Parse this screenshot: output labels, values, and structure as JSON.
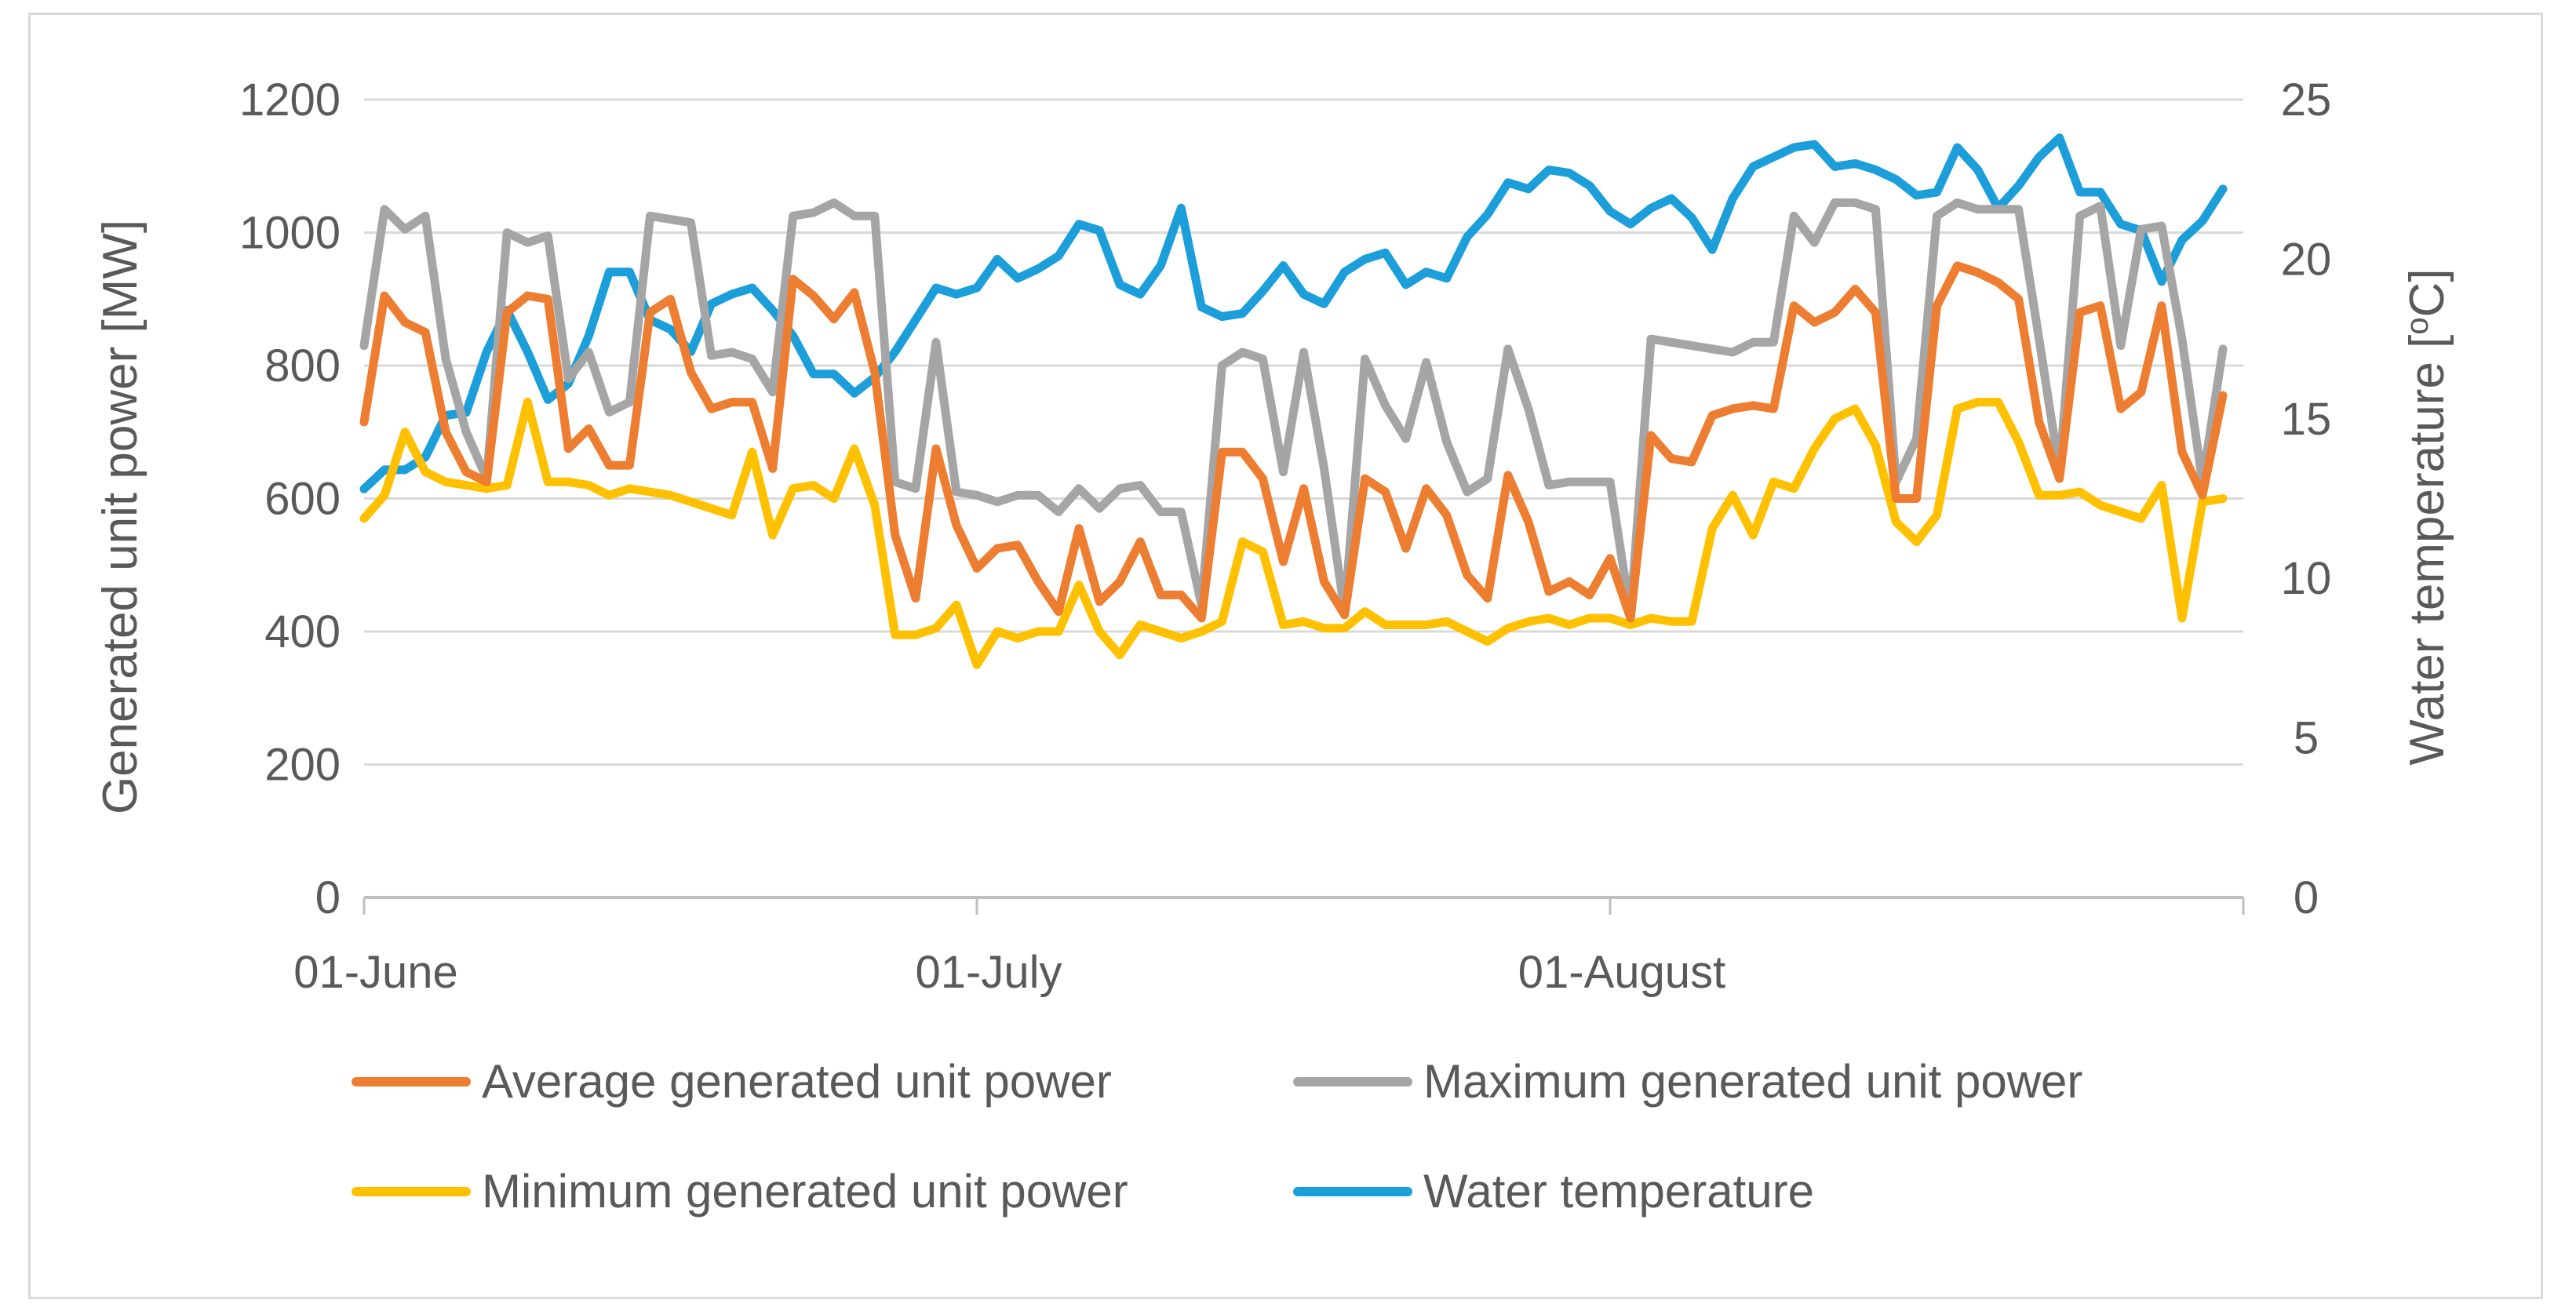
{
  "chart_data": {
    "type": "line",
    "title": "",
    "xlabel": "",
    "ylabel": "Generated unit power [MW]",
    "y2label_parts": {
      "pre": "Water temperature [",
      "sup": "o",
      "post": "C]"
    },
    "ylim": [
      0,
      1200
    ],
    "y2lim": [
      0,
      25
    ],
    "yticks": [
      0,
      200,
      400,
      600,
      800,
      1000,
      1200
    ],
    "y2ticks": [
      0,
      5,
      10,
      15,
      20,
      25
    ],
    "x_range": [
      0,
      92
    ],
    "x_ticks": [
      {
        "label": "01-June",
        "day": 0
      },
      {
        "label": "01-July",
        "day": 30
      },
      {
        "label": "01-August",
        "day": 61
      }
    ],
    "grid": "horizontal",
    "legend_position": "bottom",
    "series": [
      {
        "name": "Average generated unit power",
        "color": "#ED7D31",
        "axis": "left",
        "values": [
          715,
          905,
          865,
          850,
          700,
          640,
          625,
          880,
          905,
          900,
          675,
          705,
          650,
          650,
          880,
          900,
          790,
          735,
          745,
          745,
          645,
          930,
          905,
          870,
          910,
          790,
          545,
          450,
          675,
          560,
          495,
          525,
          530,
          475,
          430,
          555,
          445,
          475,
          535,
          455,
          455,
          420,
          670,
          670,
          630,
          505,
          615,
          475,
          425,
          630,
          610,
          525,
          615,
          575,
          485,
          450,
          635,
          565,
          460,
          475,
          455,
          510,
          420,
          695,
          660,
          655,
          725,
          735,
          740,
          735,
          890,
          865,
          880,
          915,
          880,
          600,
          600,
          890,
          950,
          940,
          925,
          900,
          715,
          630,
          880,
          890,
          735,
          760,
          890,
          670,
          605,
          755
        ]
      },
      {
        "name": "Maximum generated unit power",
        "color": "#A5A5A5",
        "axis": "left",
        "values": [
          830,
          1035,
          1005,
          1025,
          810,
          700,
          630,
          1000,
          985,
          995,
          780,
          820,
          730,
          745,
          1025,
          1020,
          1015,
          815,
          820,
          810,
          760,
          1025,
          1030,
          1045,
          1025,
          1025,
          625,
          615,
          835,
          610,
          605,
          595,
          605,
          605,
          580,
          615,
          585,
          615,
          620,
          580,
          580,
          440,
          800,
          820,
          810,
          640,
          820,
          645,
          430,
          810,
          740,
          690,
          805,
          685,
          610,
          630,
          825,
          735,
          620,
          625,
          625,
          625,
          425,
          840,
          835,
          830,
          825,
          820,
          835,
          835,
          1025,
          985,
          1045,
          1045,
          1035,
          625,
          690,
          1025,
          1045,
          1035,
          1035,
          1035,
          840,
          640,
          1025,
          1040,
          830,
          1005,
          1010,
          840,
          625,
          825
        ]
      },
      {
        "name": "Minimum generated unit power",
        "color": "#FFC000",
        "axis": "left",
        "values": [
          570,
          605,
          700,
          640,
          625,
          620,
          615,
          620,
          745,
          625,
          625,
          620,
          605,
          615,
          610,
          605,
          595,
          585,
          575,
          670,
          545,
          615,
          620,
          600,
          675,
          590,
          395,
          395,
          405,
          440,
          350,
          400,
          390,
          400,
          400,
          470,
          400,
          365,
          410,
          400,
          390,
          400,
          415,
          535,
          520,
          410,
          415,
          405,
          405,
          430,
          410,
          410,
          410,
          415,
          400,
          385,
          405,
          415,
          420,
          410,
          420,
          420,
          410,
          420,
          415,
          415,
          555,
          605,
          545,
          625,
          615,
          675,
          720,
          735,
          680,
          565,
          535,
          575,
          735,
          745,
          745,
          685,
          605,
          605,
          610,
          590,
          580,
          570,
          620,
          420,
          595,
          600
        ]
      },
      {
        "name": "Water temperature",
        "color": "#1B9ED9",
        "axis": "right",
        "values": [
          12.8,
          13.4,
          13.4,
          13.8,
          15.1,
          15.2,
          17.1,
          18.4,
          17.1,
          15.6,
          16.1,
          17.6,
          19.6,
          19.6,
          18.1,
          17.8,
          17.1,
          18.6,
          18.9,
          19.1,
          18.4,
          17.6,
          16.4,
          16.4,
          15.8,
          16.3,
          17.1,
          18.1,
          19.1,
          18.9,
          19.1,
          20.0,
          19.4,
          19.7,
          20.1,
          21.1,
          20.9,
          19.2,
          18.9,
          19.8,
          21.6,
          18.5,
          18.2,
          18.3,
          19.0,
          19.8,
          18.9,
          18.6,
          19.6,
          20.0,
          20.2,
          19.2,
          19.6,
          19.4,
          20.7,
          21.4,
          22.4,
          22.2,
          22.8,
          22.7,
          22.3,
          21.5,
          21.1,
          21.6,
          21.9,
          21.3,
          20.3,
          21.9,
          22.9,
          23.2,
          23.5,
          23.6,
          22.9,
          23.0,
          22.8,
          22.5,
          22.0,
          22.1,
          23.5,
          22.8,
          21.6,
          22.3,
          23.2,
          23.8,
          22.1,
          22.1,
          21.1,
          20.9,
          19.3,
          20.6,
          21.2,
          22.2
        ]
      }
    ]
  }
}
